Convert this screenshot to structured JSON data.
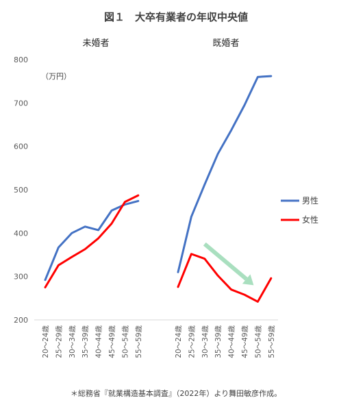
{
  "chart_data": {
    "type": "line",
    "title": "図１　大卒有業者の年収中央値",
    "unit_label": "（万円）",
    "ylim": [
      200,
      800
    ],
    "yticks": [
      200,
      300,
      400,
      500,
      600,
      700,
      800
    ],
    "ytick_labels": [
      "200",
      "300",
      "400",
      "500",
      "600",
      "700",
      "800"
    ],
    "categories": [
      "20～24歳",
      "25～29歳",
      "30～34歳",
      "35～39歳",
      "40～44歳",
      "45～49歳",
      "50～54歳",
      "55～59歳"
    ],
    "legend_position": "right",
    "panels": [
      {
        "title": "未婚者",
        "series": [
          {
            "name": "男性",
            "color": "#4472C4",
            "values": [
              292,
              367,
              400,
              415,
              407,
              452,
              466,
              474
            ]
          },
          {
            "name": "女性",
            "color": "#FF0000",
            "values": [
              275,
              326,
              345,
              363,
              388,
              422,
              472,
              487
            ]
          }
        ]
      },
      {
        "title": "既婚者",
        "series": [
          {
            "name": "男性",
            "color": "#4472C4",
            "values": [
              310,
              438,
              512,
              583,
              637,
              695,
              760,
              762
            ]
          },
          {
            "name": "女性",
            "color": "#FF0000",
            "values": [
              276,
              352,
              341,
              302,
              270,
              258,
              242,
              296
            ]
          }
        ]
      }
    ],
    "annotation": {
      "type": "arrow",
      "color": "#A9DFBF",
      "from_category": "30～34歳",
      "from_value": 375,
      "to_category": "50～54歳",
      "to_value": 280,
      "panel": 1
    },
    "legend": [
      {
        "name": "男性",
        "color": "#4472C4"
      },
      {
        "name": "女性",
        "color": "#FF0000"
      }
    ],
    "source_note": "＊総務省『就業構造基本調査』（2022年）より舞田敏彦作成。"
  }
}
